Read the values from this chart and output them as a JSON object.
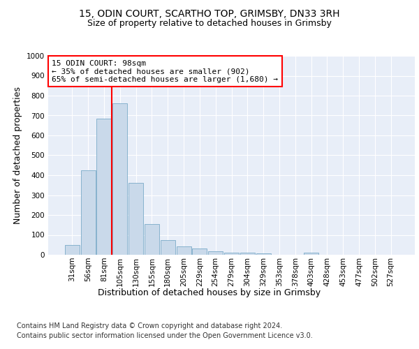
{
  "title1": "15, ODIN COURT, SCARTHO TOP, GRIMSBY, DN33 3RH",
  "title2": "Size of property relative to detached houses in Grimsby",
  "xlabel": "Distribution of detached houses by size in Grimsby",
  "ylabel": "Number of detached properties",
  "bar_color": "#c9d9ea",
  "bar_edge_color": "#7aaac8",
  "bg_color": "#e8eef8",
  "grid_color": "#ffffff",
  "categories": [
    "31sqm",
    "56sqm",
    "81sqm",
    "105sqm",
    "130sqm",
    "155sqm",
    "180sqm",
    "205sqm",
    "229sqm",
    "254sqm",
    "279sqm",
    "304sqm",
    "329sqm",
    "353sqm",
    "378sqm",
    "403sqm",
    "428sqm",
    "453sqm",
    "477sqm",
    "502sqm",
    "527sqm"
  ],
  "values": [
    50,
    425,
    685,
    760,
    360,
    155,
    75,
    42,
    30,
    18,
    11,
    10,
    8,
    0,
    0,
    10,
    0,
    0,
    0,
    0,
    0
  ],
  "ylim": [
    0,
    1000
  ],
  "yticks": [
    0,
    100,
    200,
    300,
    400,
    500,
    600,
    700,
    800,
    900,
    1000
  ],
  "annotation_text": "15 ODIN COURT: 98sqm\n← 35% of detached houses are smaller (902)\n65% of semi-detached houses are larger (1,680) →",
  "footnote1": "Contains HM Land Registry data © Crown copyright and database right 2024.",
  "footnote2": "Contains public sector information licensed under the Open Government Licence v3.0.",
  "title1_fontsize": 10,
  "title2_fontsize": 9,
  "annotation_fontsize": 8,
  "axis_label_fontsize": 9,
  "tick_fontsize": 7.5,
  "footnote_fontsize": 7
}
